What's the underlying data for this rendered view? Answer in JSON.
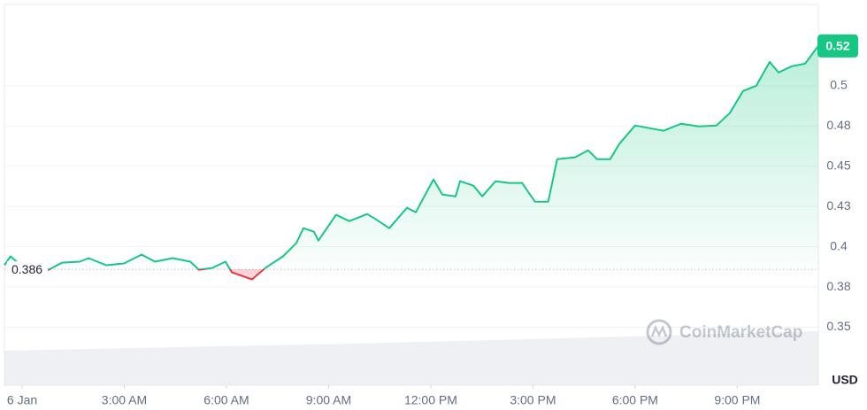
{
  "chart_data": {
    "type": "line",
    "x": [
      -0.52,
      -0.34,
      -0.13,
      0.39,
      0.78,
      1.17,
      1.69,
      1.95,
      2.47,
      2.99,
      3.51,
      3.9,
      4.42,
      4.94,
      5.19,
      5.58,
      5.97,
      6.16,
      6.75,
      7.14,
      7.66,
      8.05,
      8.26,
      8.57,
      8.7,
      9.22,
      9.61,
      10.13,
      10.39,
      10.78,
      11.3,
      11.56,
      12.08,
      12.34,
      12.73,
      12.86,
      13.25,
      13.51,
      13.9,
      14.29,
      14.68,
      15.06,
      15.45,
      15.71,
      16.23,
      16.62,
      16.88,
      17.27,
      17.53,
      18.0,
      18.44,
      18.83,
      19.35,
      19.87,
      20.39,
      20.78,
      21.17,
      21.56,
      21.95,
      22.21,
      22.6,
      22.99,
      23.38
    ],
    "values": [
      0.3885,
      0.394,
      0.3902,
      0.3896,
      0.3857,
      0.3901,
      0.3907,
      0.3929,
      0.3885,
      0.3896,
      0.3951,
      0.3907,
      0.3929,
      0.3907,
      0.3857,
      0.3868,
      0.3907,
      0.3841,
      0.3797,
      0.3868,
      0.394,
      0.4022,
      0.4115,
      0.4093,
      0.4038,
      0.4198,
      0.4159,
      0.4203,
      0.417,
      0.4115,
      0.4242,
      0.4214,
      0.4418,
      0.4324,
      0.4313,
      0.4407,
      0.4379,
      0.4313,
      0.4407,
      0.4396,
      0.4396,
      0.428,
      0.428,
      0.4544,
      0.4555,
      0.4599,
      0.4544,
      0.4544,
      0.4637,
      0.4753,
      0.4736,
      0.472,
      0.4764,
      0.4747,
      0.4753,
      0.483,
      0.4967,
      0.5,
      0.5148,
      0.5082,
      0.5121,
      0.5137,
      0.5247
    ],
    "baseline": 0.386,
    "current_label": "0.52",
    "color_up": "#16c784",
    "color_down": "#ea3943",
    "xlim": [
      -0.52,
      23.38
    ],
    "xticks": [
      {
        "value": 0,
        "label": "6 Jan"
      },
      {
        "value": 3,
        "label": "3:00 AM"
      },
      {
        "value": 6,
        "label": "6:00 AM"
      },
      {
        "value": 9,
        "label": "9:00 AM"
      },
      {
        "value": 12,
        "label": "12:00 PM"
      },
      {
        "value": 15,
        "label": "3:00 PM"
      },
      {
        "value": 18,
        "label": "6:00 PM"
      },
      {
        "value": 21,
        "label": "9:00 PM"
      }
    ],
    "ylim": [
      0.314,
      0.5505
    ],
    "yticks": [
      0.35,
      {
        "value": 0.375,
        "label": "0.38"
      },
      0.4,
      {
        "value": 0.425,
        "label": "0.43"
      },
      0.45,
      {
        "value": 0.475,
        "label": "0.48"
      },
      0.5
    ],
    "y_unit": "USD",
    "watermark": "CoinMarketCap",
    "grid": true
  }
}
